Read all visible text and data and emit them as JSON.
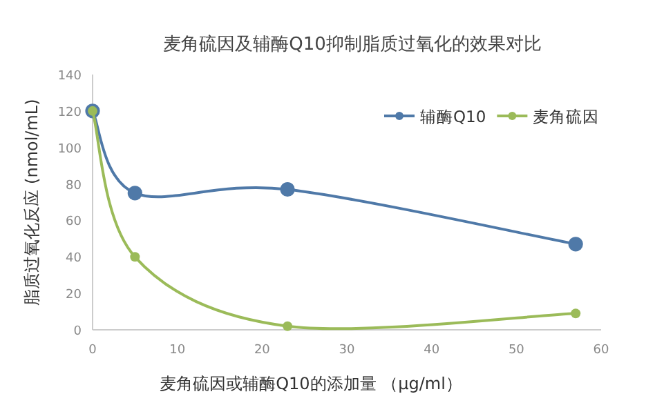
{
  "chart_data": {
    "type": "line",
    "title": "麦角硫因及辅酶Q10抑制脂质过氧化的效果对比",
    "xlabel": "麦角硫因或辅酶Q10的添加量 （μg/ml）",
    "ylabel": "脂质过氧化反应 (nmol/mL)",
    "x": [
      0,
      5,
      23,
      57
    ],
    "series": [
      {
        "name": "辅酶Q10",
        "color": "#4f79a8",
        "values": [
          120,
          75,
          77,
          47
        ]
      },
      {
        "name": "麦角硫因",
        "color": "#9bbb59",
        "values": [
          120,
          40,
          2,
          9
        ]
      }
    ],
    "xlim": [
      0,
      60
    ],
    "xticks": [
      0,
      10,
      20,
      30,
      40,
      50,
      60
    ],
    "ylim": [
      0,
      140
    ],
    "yticks": [
      0,
      20,
      40,
      60,
      80,
      100,
      120,
      140
    ],
    "grid": false,
    "legend": "top right",
    "marker": "circle",
    "line_style": "solid"
  }
}
